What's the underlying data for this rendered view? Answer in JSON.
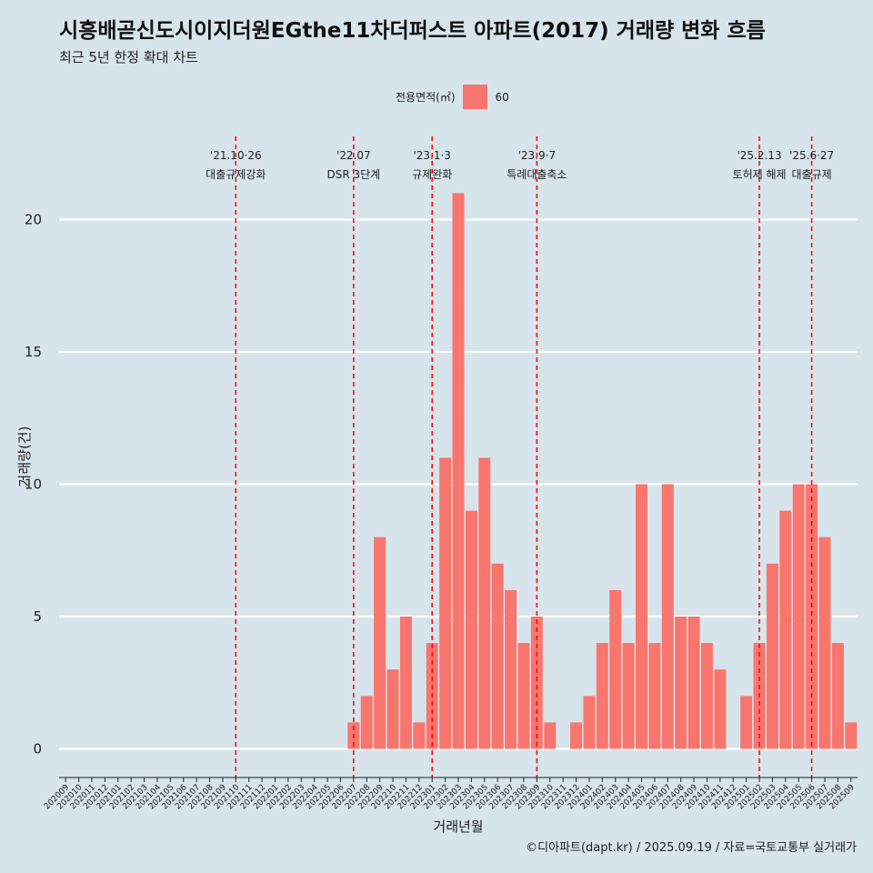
{
  "title": "시흥배곧신도시이지더원EGthe11차더퍼스트 아파트(2017) 거래량 변화 흐름",
  "subtitle": "최근 5년 한정 확대 차트",
  "caption": "©디아파트(dapt.kr) / 2025.09.19 / 자료=국토교통부 실거래가",
  "colors": {
    "background": "#d7e4ec",
    "bar": "#f8766d",
    "event_line": "#ff0000",
    "grid": "#ffffff"
  },
  "chart_data": {
    "type": "bar",
    "xlabel": "거래년월",
    "ylabel": "거래량(건)",
    "ylim": [
      0,
      21.8
    ],
    "yticks": [
      0,
      5,
      10,
      15,
      20
    ],
    "legend": {
      "title": "전용면적(㎡)",
      "entries": [
        "60"
      ],
      "position": "top"
    },
    "categories": [
      "202009",
      "202010",
      "202011",
      "202012",
      "202101",
      "202102",
      "202103",
      "202104",
      "202105",
      "202106",
      "202107",
      "202108",
      "202109",
      "202110",
      "202111",
      "202112",
      "202201",
      "202202",
      "202203",
      "202204",
      "202205",
      "202206",
      "202207",
      "202208",
      "202209",
      "202210",
      "202211",
      "202212",
      "202301",
      "202302",
      "202303",
      "202304",
      "202305",
      "202306",
      "202307",
      "202308",
      "202309",
      "202310",
      "202311",
      "202312",
      "202401",
      "202402",
      "202403",
      "202404",
      "202405",
      "202406",
      "202407",
      "202408",
      "202409",
      "202410",
      "202411",
      "202412",
      "202501",
      "202502",
      "202503",
      "202504",
      "202505",
      "202506",
      "202507",
      "202508",
      "202509"
    ],
    "series": [
      {
        "name": "60",
        "values": [
          0,
          0,
          0,
          0,
          0,
          0,
          0,
          0,
          0,
          0,
          0,
          0,
          0,
          0,
          0,
          0,
          0,
          0,
          0,
          0,
          0,
          0,
          1,
          2,
          8,
          3,
          5,
          1,
          4,
          11,
          21,
          9,
          11,
          7,
          6,
          4,
          5,
          1,
          0,
          1,
          2,
          4,
          6,
          4,
          10,
          4,
          10,
          5,
          5,
          4,
          3,
          0,
          2,
          4,
          7,
          9,
          10,
          10,
          8,
          4,
          1
        ]
      }
    ],
    "events": [
      {
        "month": "202110",
        "date": "'21.10·26",
        "label": "대출규제강화"
      },
      {
        "month": "202207",
        "date": "'22.07",
        "label": "DSR 3단계"
      },
      {
        "month": "202301",
        "date": "'23.1·3",
        "label": "규제완화"
      },
      {
        "month": "202309",
        "date": "'23.9·7",
        "label": "특례대출축소"
      },
      {
        "month": "202502",
        "date": "'25.2.13",
        "label": "토허제 해제"
      },
      {
        "month": "202506",
        "date": "'25.6·27",
        "label": "대출규제"
      }
    ]
  }
}
